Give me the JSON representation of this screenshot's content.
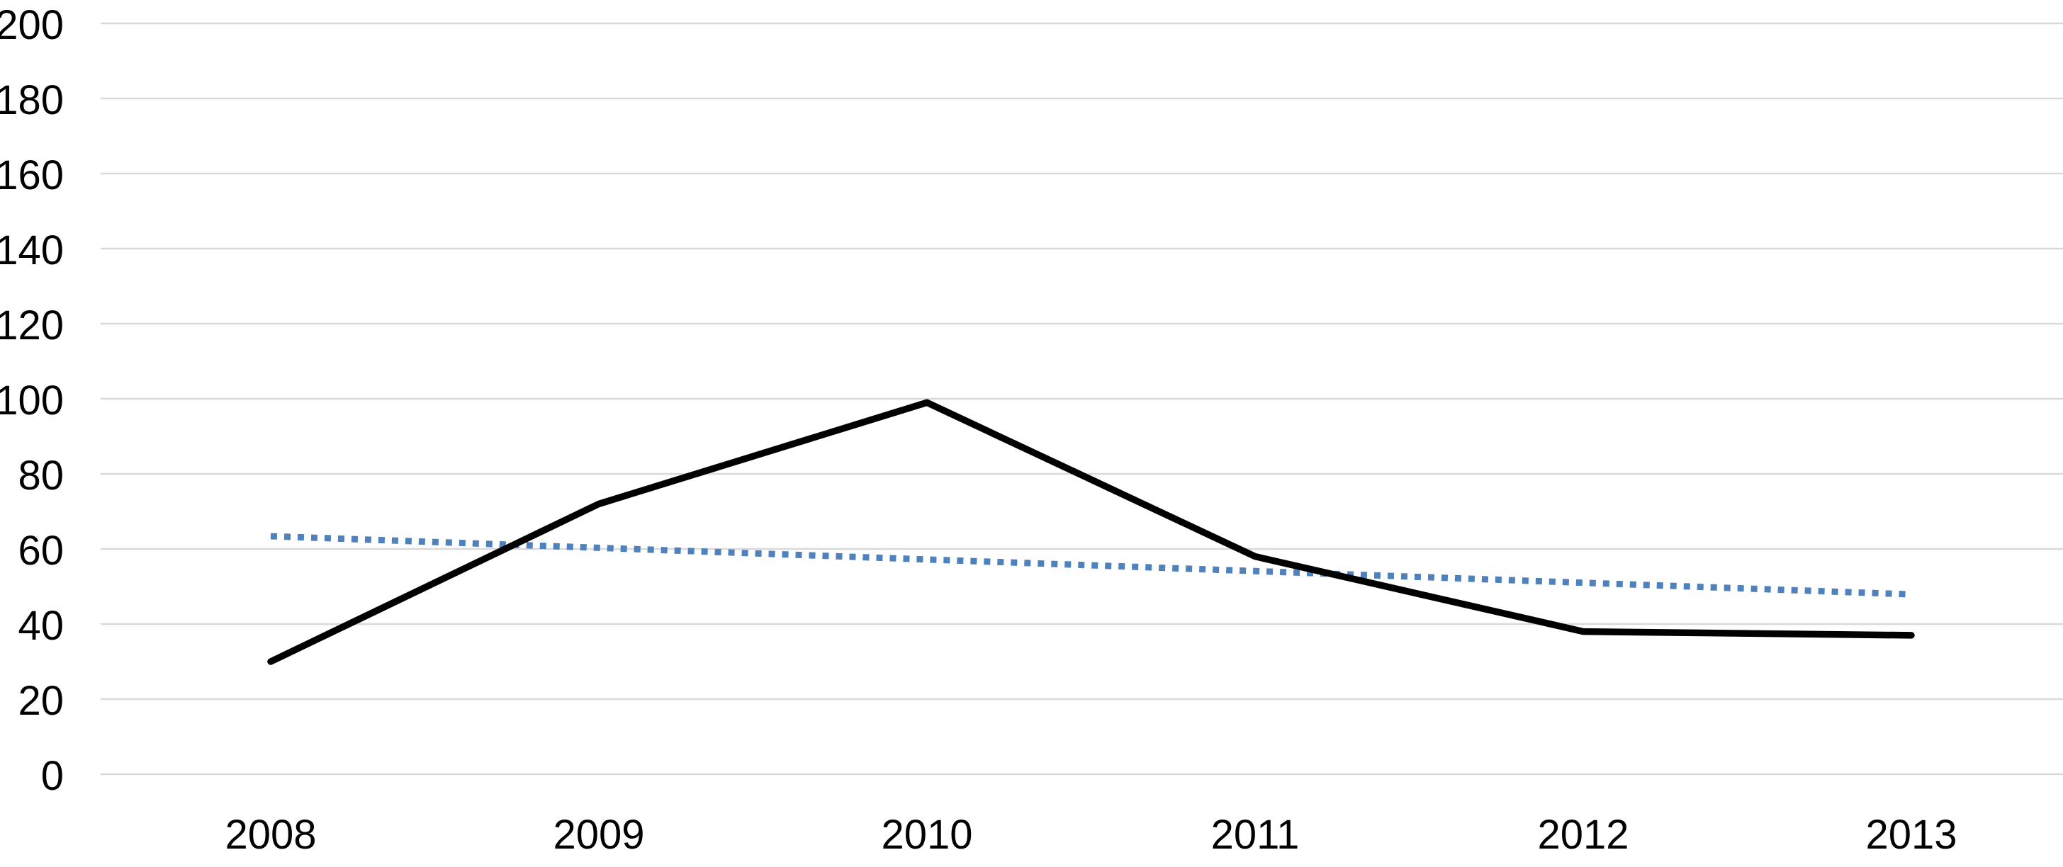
{
  "chart_data": {
    "type": "line",
    "title": "",
    "xlabel": "",
    "ylabel": "",
    "categories": [
      "2008",
      "2009",
      "2010",
      "2011",
      "2012",
      "2013"
    ],
    "series": [
      {
        "name": "data-series",
        "style": "solid",
        "color": "#000000",
        "values": [
          30,
          72,
          99,
          58,
          38,
          37
        ]
      },
      {
        "name": "linear-trendline",
        "style": "dotted",
        "color": "#4f81bd",
        "values": [
          63.4,
          60.3,
          57.2,
          54.1,
          51.0,
          47.9
        ]
      }
    ],
    "ylim": [
      0,
      200
    ],
    "y_ticks": [
      0,
      20,
      40,
      60,
      80,
      100,
      120,
      140,
      160,
      180,
      200
    ],
    "grid": true,
    "legend": false,
    "colors": {
      "series_line": "#000000",
      "trend_line": "#4f81bd",
      "gridline": "#d9d9d9",
      "tick_label": "#000000",
      "background": "#ffffff"
    }
  }
}
